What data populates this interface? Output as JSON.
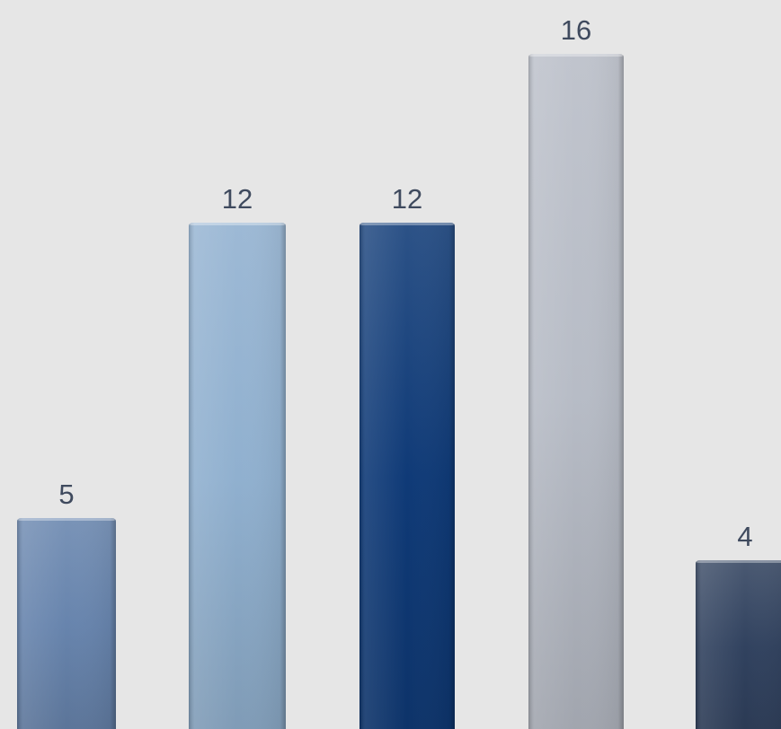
{
  "chart_data": {
    "type": "bar",
    "categories": [
      "",
      "",
      "",
      "",
      ""
    ],
    "values": [
      5,
      12,
      12,
      16,
      4
    ],
    "data_labels": [
      "5",
      "12",
      "12",
      "16",
      "4"
    ],
    "colors": [
      "#6784ad",
      "#90b0cf",
      "#0f3a77",
      "#b7bcc6",
      "#31425f"
    ],
    "title": "",
    "xlabel": "",
    "ylabel": "",
    "ylim": [
      0,
      16
    ],
    "grid": false,
    "legend": "none"
  },
  "background": "#e6e6e6"
}
